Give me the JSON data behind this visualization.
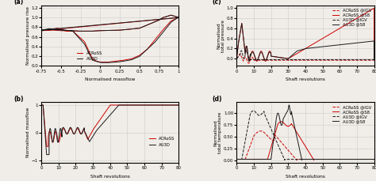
{
  "fig_width": 4.74,
  "fig_height": 2.29,
  "dpi": 100,
  "background": "#f0ede8",
  "panel_labels": [
    "(a)",
    "(b)",
    "(c)",
    "(d)"
  ],
  "red_color": "#cc0000",
  "black_color": "#1a1a1a",
  "grid_color": "#cccccc",
  "axes": {
    "a": {
      "xlabel": "Normalised massflow",
      "ylabel": "Normalised pressure rise",
      "xlim": [
        -0.75,
        1.0
      ],
      "ylim": [
        0,
        1.25
      ],
      "xticks": [
        -0.75,
        -0.5,
        -0.25,
        0,
        0.25,
        0.5,
        0.75,
        1.0
      ],
      "xticklabels": [
        "-0.75",
        "-0.5",
        "-0.25",
        "0",
        "0.25",
        "0.5",
        "0.75",
        "1"
      ],
      "yticks": [
        0,
        0.2,
        0.4,
        0.6,
        0.8,
        1.0,
        1.2
      ]
    },
    "b": {
      "xlabel": "Shaft revolutions",
      "ylabel": "Normalised massflow",
      "xlim": [
        0,
        80
      ],
      "ylim": [
        -1.1,
        1.1
      ],
      "xticks": [
        0,
        10,
        20,
        30,
        40,
        50,
        60,
        70,
        80
      ],
      "yticks": [
        -1,
        0,
        1
      ]
    },
    "c": {
      "xlabel": "Shaft revolutions",
      "ylabel": "Normalised\ntotal pressure",
      "xlim": [
        0,
        80
      ],
      "xticks": [
        0,
        10,
        20,
        30,
        40,
        50,
        60,
        70,
        80
      ]
    },
    "d": {
      "xlabel": "Shaft revolutions",
      "ylabel": "Normalised\ntotal temperature",
      "xlim": [
        0,
        80
      ],
      "xticks": [
        0,
        10,
        20,
        30,
        40,
        50,
        60,
        70,
        80
      ]
    }
  }
}
